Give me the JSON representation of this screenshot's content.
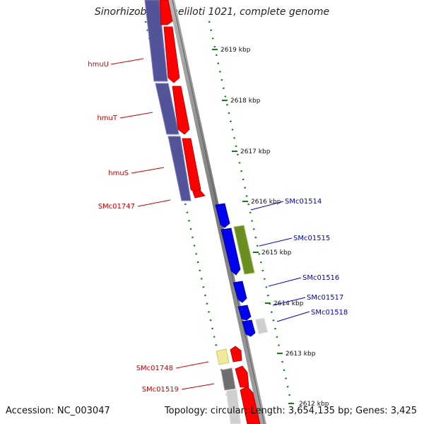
{
  "title": "Sinorhizobium meliloti 1021, complete genome",
  "footer": {
    "accession": "Accession: NC_003047",
    "summary": "Topology: circular; Length: 3,654,135 bp; Genes: 3,425"
  },
  "ticks": [
    {
      "label": "2619 kbp"
    },
    {
      "label": "2618 kbp"
    },
    {
      "label": "2617 kbp"
    },
    {
      "label": "2616 kbp"
    },
    {
      "label": "2615 kbp"
    },
    {
      "label": "2614 kbp"
    },
    {
      "label": "2613 kbp"
    },
    {
      "label": "2612 kbp"
    }
  ],
  "gene_labels_left": [
    {
      "label": "hmuU",
      "color": "#cc0000"
    },
    {
      "label": "hmuT",
      "color": "#cc0000"
    },
    {
      "label": "hmuS",
      "color": "#cc0000"
    },
    {
      "label": "SMc01747",
      "color": "#cc0000"
    },
    {
      "label": "SMc01748",
      "color": "#cc0000"
    },
    {
      "label": "SMc01519",
      "color": "#cc0000"
    }
  ],
  "gene_labels_right": [
    {
      "label": "SMc01514",
      "color": "#0000cc"
    },
    {
      "label": "SMc01515",
      "color": "#0000cc"
    },
    {
      "label": "SMc01516",
      "color": "#0000cc"
    },
    {
      "label": "SMc01517",
      "color": "#0000cc"
    },
    {
      "label": "SMc01518",
      "color": "#0000cc"
    }
  ],
  "colors": {
    "forward_cds": "#ff0000",
    "reverse_cds": "#0000ee",
    "cog_purple": "#53539a",
    "cog_green": "#6b8e23",
    "cog_yellow": "#eeea9a",
    "cog_gray": "#6f6f6f",
    "cog_lightgray": "#cfcfcf",
    "backbone": "#8c8c8c",
    "tick": "#1a7a1a"
  }
}
